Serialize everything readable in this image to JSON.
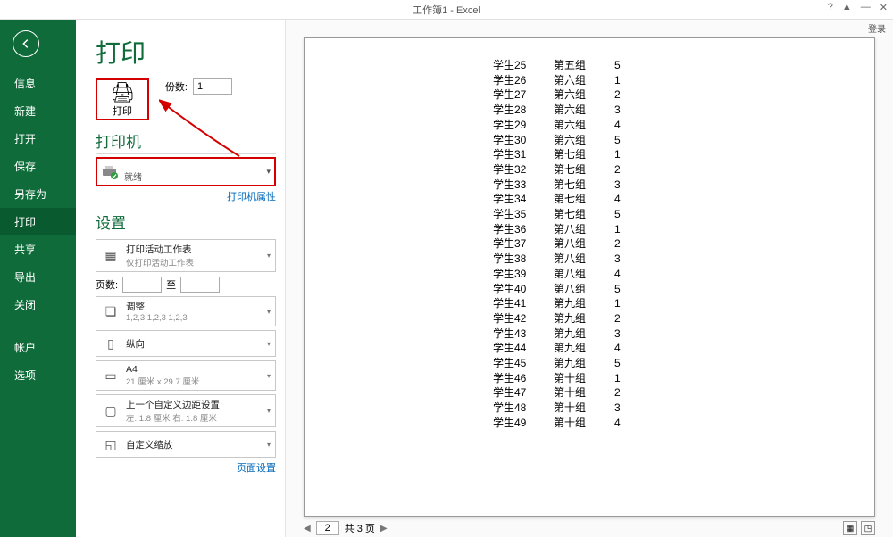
{
  "window": {
    "title": "工作簿1 - Excel",
    "help": "?",
    "ribbon_toggle": "▲",
    "minimize": "—",
    "close": "✕",
    "login": "登录"
  },
  "sidebar": {
    "items": [
      "信息",
      "新建",
      "打开",
      "保存",
      "另存为",
      "打印",
      "共享",
      "导出",
      "关闭"
    ],
    "footer": [
      "帐户",
      "选项"
    ],
    "active_index": 5
  },
  "print": {
    "heading": "打印",
    "button_label": "打印",
    "copies_label": "份数:",
    "copies_value": "1"
  },
  "printer": {
    "section_title": "打印机",
    "name": " ",
    "status": "就绪",
    "properties_link": "打印机属性"
  },
  "page_setup_link": "页面设置",
  "settings": {
    "section_title": "设置",
    "scope": {
      "title": "打印活动工作表",
      "sub": "仅打印活动工作表"
    },
    "pages_label": "页数:",
    "to_label": "至",
    "collate": {
      "title": "调整",
      "sub": "1,2,3    1,2,3    1,2,3"
    },
    "orientation": {
      "title": "纵向"
    },
    "paper": {
      "title": "A4",
      "sub": "21 厘米 x 29.7 厘米"
    },
    "margins": {
      "title": "上一个自定义边距设置",
      "sub": "左: 1.8 厘米    右: 1.8 厘米"
    },
    "scaling": {
      "title": "自定义缩放"
    }
  },
  "preview": {
    "rows": [
      [
        "学生25",
        "第五组",
        "5"
      ],
      [
        "学生26",
        "第六组",
        "1"
      ],
      [
        "学生27",
        "第六组",
        "2"
      ],
      [
        "学生28",
        "第六组",
        "3"
      ],
      [
        "学生29",
        "第六组",
        "4"
      ],
      [
        "学生30",
        "第六组",
        "5"
      ],
      [
        "学生31",
        "第七组",
        "1"
      ],
      [
        "学生32",
        "第七组",
        "2"
      ],
      [
        "学生33",
        "第七组",
        "3"
      ],
      [
        "学生34",
        "第七组",
        "4"
      ],
      [
        "学生35",
        "第七组",
        "5"
      ],
      [
        "学生36",
        "第八组",
        "1"
      ],
      [
        "学生37",
        "第八组",
        "2"
      ],
      [
        "学生38",
        "第八组",
        "3"
      ],
      [
        "学生39",
        "第八组",
        "4"
      ],
      [
        "学生40",
        "第八组",
        "5"
      ],
      [
        "学生41",
        "第九组",
        "1"
      ],
      [
        "学生42",
        "第九组",
        "2"
      ],
      [
        "学生43",
        "第九组",
        "3"
      ],
      [
        "学生44",
        "第九组",
        "4"
      ],
      [
        "学生45",
        "第九组",
        "5"
      ],
      [
        "学生46",
        "第十组",
        "1"
      ],
      [
        "学生47",
        "第十组",
        "2"
      ],
      [
        "学生48",
        "第十组",
        "3"
      ],
      [
        "学生49",
        "第十组",
        "4"
      ]
    ],
    "current_page": "2",
    "total_pages_label": "共 3 页"
  },
  "annotation": {
    "arrow_color": "#d40000"
  }
}
